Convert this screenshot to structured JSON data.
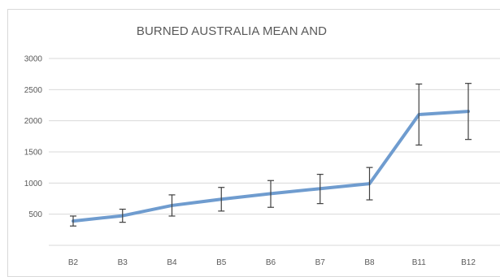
{
  "chart_data": {
    "type": "line",
    "title": "BURNED AUSTRALIA MEAN AND",
    "xlabel": "",
    "ylabel": "",
    "categories": [
      "B2",
      "B3",
      "B4",
      "B5",
      "B6",
      "B7",
      "B8",
      "B11",
      "B12"
    ],
    "y_ticks": [
      "500",
      "1000",
      "1500",
      "2000",
      "2500",
      "3000"
    ],
    "ylim": [
      0,
      3000
    ],
    "grid": true,
    "legend": "none",
    "series": [
      {
        "values": [
          390,
          475,
          640,
          740,
          830,
          910,
          990,
          2100,
          2150
        ],
        "error_low": [
          310,
          370,
          470,
          550,
          610,
          670,
          730,
          1610,
          1700
        ],
        "error_high": [
          470,
          580,
          810,
          930,
          1040,
          1140,
          1250,
          2590,
          2600
        ],
        "color": "#6f9ccf"
      }
    ],
    "colors": {
      "gridline": "#d9d9d9",
      "errorbar": "#404040",
      "text": "#595959"
    }
  }
}
